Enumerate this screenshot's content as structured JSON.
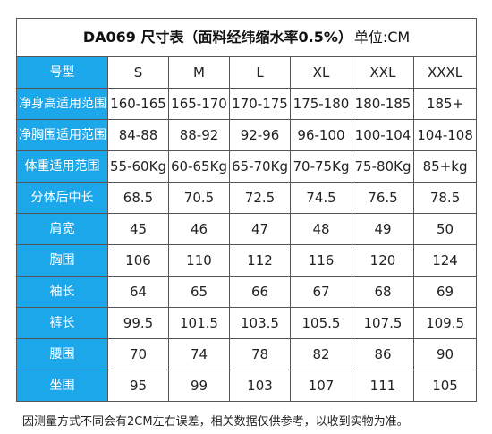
{
  "title": {
    "main": "DA069 尺寸表（面料经纬缩水率0.5%）",
    "unit": "单位:CM"
  },
  "header": {
    "label": "号型",
    "sizes": [
      "S",
      "M",
      "L",
      "XL",
      "XXL",
      "XXXL"
    ]
  },
  "rows": [
    {
      "label": "净身高适用范围",
      "values": [
        "160-165",
        "165-170",
        "170-175",
        "175-180",
        "180-185",
        "185+"
      ]
    },
    {
      "label": "净胸围适用范围",
      "values": [
        "84-88",
        "88-92",
        "92-96",
        "96-100",
        "100-104",
        "104-108"
      ]
    },
    {
      "label": "体重适用范围",
      "values": [
        "55-60Kg",
        "60-65Kg",
        "65-70Kg",
        "70-75Kg",
        "75-80Kg",
        "85+kg"
      ]
    },
    {
      "label": "分体后中长",
      "values": [
        "68.5",
        "70.5",
        "72.5",
        "74.5",
        "76.5",
        "78.5"
      ]
    },
    {
      "label": "肩宽",
      "values": [
        "45",
        "46",
        "47",
        "48",
        "49",
        "50"
      ]
    },
    {
      "label": "胸围",
      "values": [
        "106",
        "110",
        "112",
        "116",
        "120",
        "124"
      ]
    },
    {
      "label": "袖长",
      "values": [
        "64",
        "65",
        "66",
        "67",
        "68",
        "69"
      ]
    },
    {
      "label": "裤长",
      "values": [
        "99.5",
        "101.5",
        "103.5",
        "105.5",
        "107.5",
        "109.5"
      ]
    },
    {
      "label": "腰围",
      "values": [
        "70",
        "74",
        "78",
        "82",
        "86",
        "90"
      ]
    },
    {
      "label": "坐围",
      "values": [
        "95",
        "99",
        "103",
        "107",
        "111",
        "105"
      ]
    }
  ],
  "note": "因测量方式不同会有2CM左右误差，相关数据仅供参考，以收到实物为准。",
  "colors": {
    "label_bg": "#1da7eb",
    "border": "#555555"
  }
}
